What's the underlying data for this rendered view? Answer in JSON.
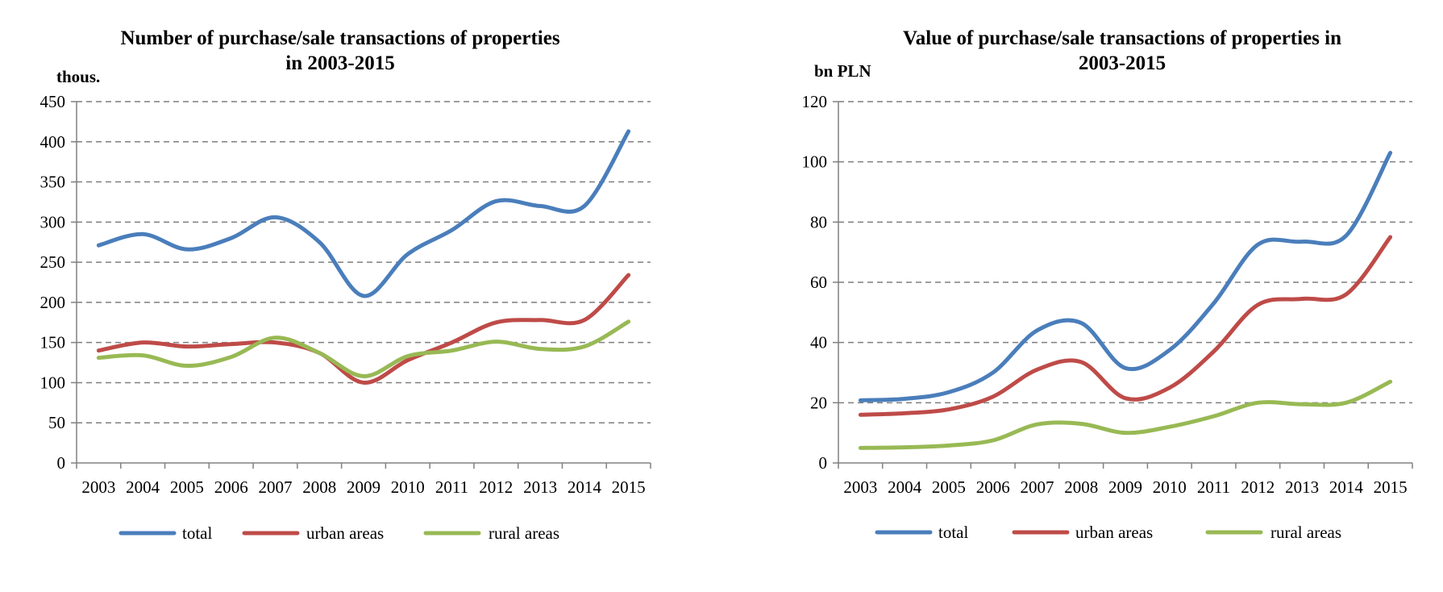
{
  "chart_data": [
    {
      "type": "line",
      "title": [
        "Number of purchase/sale transactions of properties",
        "in 2003-2015"
      ],
      "ylabel": "thous.",
      "xlabel": "",
      "categories": [
        "2003",
        "2004",
        "2005",
        "2006",
        "2007",
        "2008",
        "2009",
        "2010",
        "2011",
        "2012",
        "2013",
        "2014",
        "2015"
      ],
      "ylim": [
        0,
        450
      ],
      "yticks": [
        0,
        50,
        100,
        150,
        200,
        250,
        300,
        350,
        400,
        450
      ],
      "grid": true,
      "legend_position": "bottom",
      "series": [
        {
          "name": "total",
          "color": "#4a7ebb",
          "values": [
            271,
            285,
            266,
            280,
            306,
            275,
            208,
            260,
            290,
            326,
            320,
            320,
            413
          ]
        },
        {
          "name": "urban areas",
          "color": "#be4b48",
          "values": [
            140,
            150,
            145,
            148,
            150,
            137,
            100,
            128,
            150,
            175,
            178,
            178,
            234
          ]
        },
        {
          "name": "rural areas",
          "color": "#98b954",
          "values": [
            131,
            134,
            121,
            132,
            156,
            137,
            108,
            133,
            140,
            151,
            142,
            145,
            176
          ]
        }
      ]
    },
    {
      "type": "line",
      "title": [
        "Value of purchase/sale transactions of properties in",
        "2003-2015"
      ],
      "ylabel": "bn PLN",
      "xlabel": "",
      "categories": [
        "2003",
        "2004",
        "2005",
        "2006",
        "2007",
        "2008",
        "2009",
        "2010",
        "2011",
        "2012",
        "2013",
        "2014",
        "2015"
      ],
      "ylim": [
        0,
        120
      ],
      "yticks": [
        0,
        20,
        40,
        60,
        80,
        100,
        120
      ],
      "grid": true,
      "legend_position": "bottom",
      "series": [
        {
          "name": "total",
          "color": "#4a7ebb",
          "values": [
            20.8,
            21.3,
            23.5,
            30,
            44,
            46.5,
            31.5,
            37.5,
            53,
            72.5,
            73.5,
            75.5,
            103
          ]
        },
        {
          "name": "urban areas",
          "color": "#be4b48",
          "values": [
            16,
            16.5,
            17.8,
            22,
            31,
            33.5,
            21.5,
            25,
            37,
            52.5,
            54.5,
            56,
            75
          ]
        },
        {
          "name": "rural areas",
          "color": "#98b954",
          "values": [
            5,
            5.2,
            5.8,
            7.5,
            12.8,
            13,
            10,
            12,
            15.5,
            20,
            19.5,
            20,
            27
          ]
        }
      ]
    }
  ]
}
